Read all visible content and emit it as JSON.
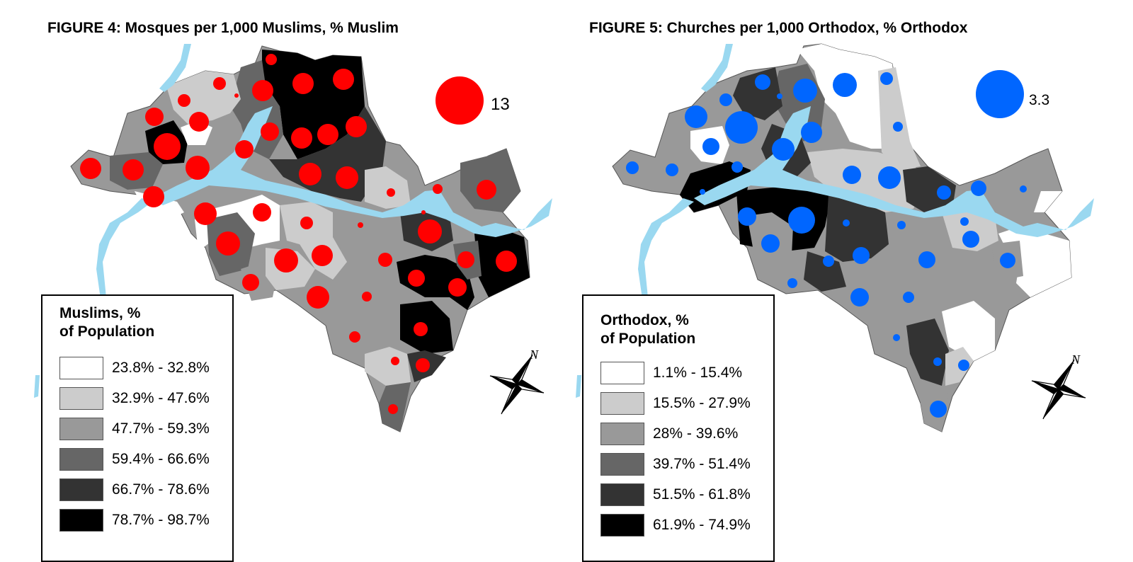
{
  "figures": [
    {
      "title": "FIGURE 4: Mosques per 1,000 Muslims, % Muslim",
      "legend_title_1": "Muslims, %",
      "legend_title_2": "of Population",
      "legend_items": [
        {
          "label": "23.8% - 32.8%",
          "color": "#ffffff"
        },
        {
          "label": "32.9% - 47.6%",
          "color": "#cccccc"
        },
        {
          "label": "47.7% - 59.3%",
          "color": "#999999"
        },
        {
          "label": "59.4% - 66.6%",
          "color": "#666666"
        },
        {
          "label": "66.7% - 78.6%",
          "color": "#333333"
        },
        {
          "label": "78.7% - 98.7%",
          "color": "#000000"
        }
      ],
      "symbol_color": "#ff0000",
      "scale_value": "13"
    },
    {
      "title": "FIGURE 5: Churches per 1,000 Orthodox, % Orthodox",
      "legend_title_1": "Orthodox, %",
      "legend_title_2": "of Population",
      "legend_items": [
        {
          "label": "1.1% - 15.4%",
          "color": "#ffffff"
        },
        {
          "label": "15.5% - 27.9%",
          "color": "#cccccc"
        },
        {
          "label": "28% - 39.6%",
          "color": "#999999"
        },
        {
          "label": "39.7% - 51.4%",
          "color": "#666666"
        },
        {
          "label": "51.5% - 61.8%",
          "color": "#333333"
        },
        {
          "label": "61.9% - 74.9%",
          "color": "#000000"
        }
      ],
      "symbol_color": "#0066ff",
      "scale_value": "3.3"
    }
  ],
  "water_color": "#9ad8f0",
  "north_arrow_label": "N"
}
